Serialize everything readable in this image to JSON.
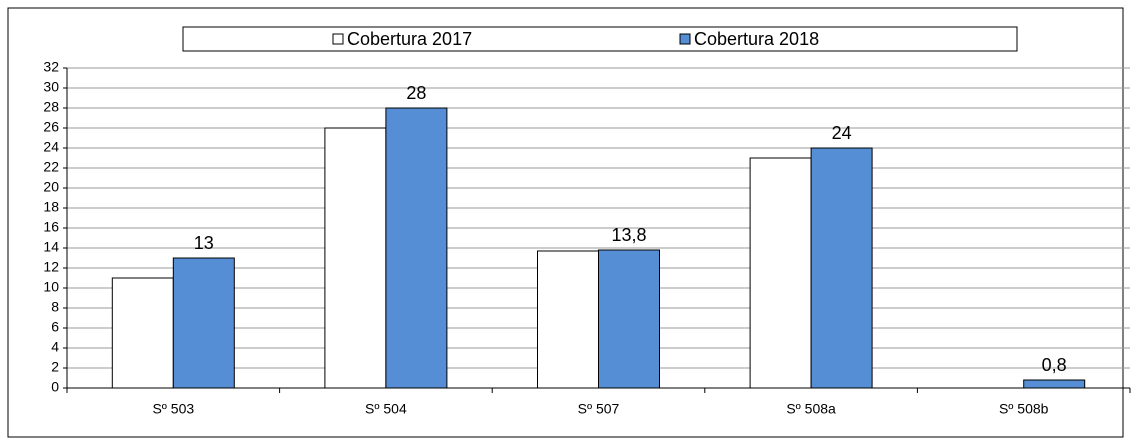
{
  "chart_data": {
    "type": "bar",
    "categories": [
      "Sº 503",
      "Sº 504",
      "Sº 507",
      "Sº 508a",
      "Sº 508b"
    ],
    "series": [
      {
        "name": "Cobertura 2017",
        "color": "#ffffff",
        "values": [
          11,
          26,
          13.7,
          23,
          null
        ]
      },
      {
        "name": "Cobertura 2018",
        "color": "#558ed5",
        "values": [
          13,
          28,
          13.8,
          24,
          0.8
        ],
        "value_labels": [
          "13",
          "28",
          "13,8",
          "24",
          "0,8"
        ]
      }
    ],
    "ylim": [
      0,
      32
    ],
    "yticks": [
      0,
      2,
      4,
      6,
      8,
      10,
      12,
      14,
      16,
      18,
      20,
      22,
      24,
      26,
      28,
      30,
      32
    ],
    "grid": true,
    "legend": "top"
  }
}
